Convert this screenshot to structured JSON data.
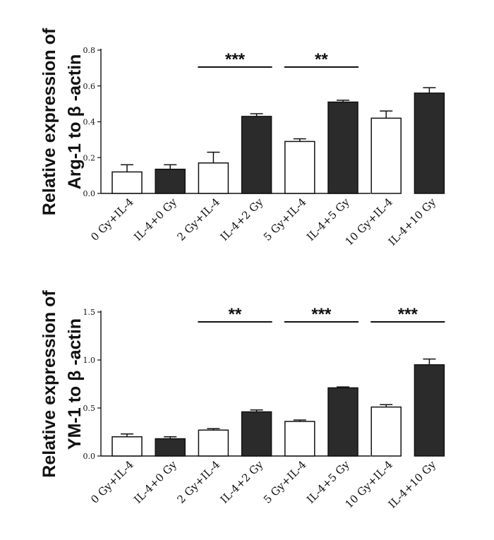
{
  "chart_data": [
    {
      "type": "bar",
      "ylabel_lines": [
        "Relative expression of",
        "Arg-1 to β -actin"
      ],
      "categories": [
        "0 Gy+IL-4",
        "IL-4+0 Gy",
        "2 Gy+IL-4",
        "IL-4+2 Gy",
        "5 Gy+IL-4",
        "IL-4+5 Gy",
        "10 Gy+IL-4",
        "IL-4+10 Gy"
      ],
      "values": [
        0.12,
        0.135,
        0.17,
        0.43,
        0.29,
        0.51,
        0.42,
        0.56
      ],
      "errors": [
        0.04,
        0.025,
        0.06,
        0.015,
        0.015,
        0.01,
        0.04,
        0.03
      ],
      "fills": [
        "#ffffff",
        "#2b2b2b",
        "#ffffff",
        "#2b2b2b",
        "#ffffff",
        "#2b2b2b",
        "#ffffff",
        "#2b2b2b"
      ],
      "yticks": [
        "0.0",
        "0.2",
        "0.4",
        "0.6",
        "0.8"
      ],
      "ytick_values": [
        0,
        0.2,
        0.4,
        0.6,
        0.8
      ],
      "ylim": [
        0,
        0.8
      ],
      "significance": [
        {
          "from": 2,
          "to": 3,
          "label": "***"
        },
        {
          "from": 4,
          "to": 5,
          "label": "**"
        }
      ]
    },
    {
      "type": "bar",
      "ylabel_lines": [
        "Relative expression of",
        "YM-1 to β -actin"
      ],
      "categories": [
        "0 Gy+IL-4",
        "IL-4+0 Gy",
        "2 Gy+IL-4",
        "IL-4+2 Gy",
        "5 Gy+IL-4",
        "IL-4+5 Gy",
        "10 Gy+IL-4",
        "IL-4+10 Gy"
      ],
      "values": [
        0.2,
        0.18,
        0.27,
        0.46,
        0.36,
        0.71,
        0.51,
        0.95
      ],
      "errors": [
        0.03,
        0.02,
        0.015,
        0.02,
        0.015,
        0.01,
        0.025,
        0.06
      ],
      "fills": [
        "#ffffff",
        "#2b2b2b",
        "#ffffff",
        "#2b2b2b",
        "#ffffff",
        "#2b2b2b",
        "#ffffff",
        "#2b2b2b"
      ],
      "yticks": [
        "0.0",
        "0.5",
        "1.0",
        "1.5"
      ],
      "ytick_values": [
        0,
        0.5,
        1.0,
        1.5
      ],
      "ylim": [
        0,
        1.5
      ],
      "significance": [
        {
          "from": 2,
          "to": 3,
          "label": "**"
        },
        {
          "from": 4,
          "to": 5,
          "label": "***"
        },
        {
          "from": 6,
          "to": 7,
          "label": "***"
        }
      ]
    }
  ]
}
